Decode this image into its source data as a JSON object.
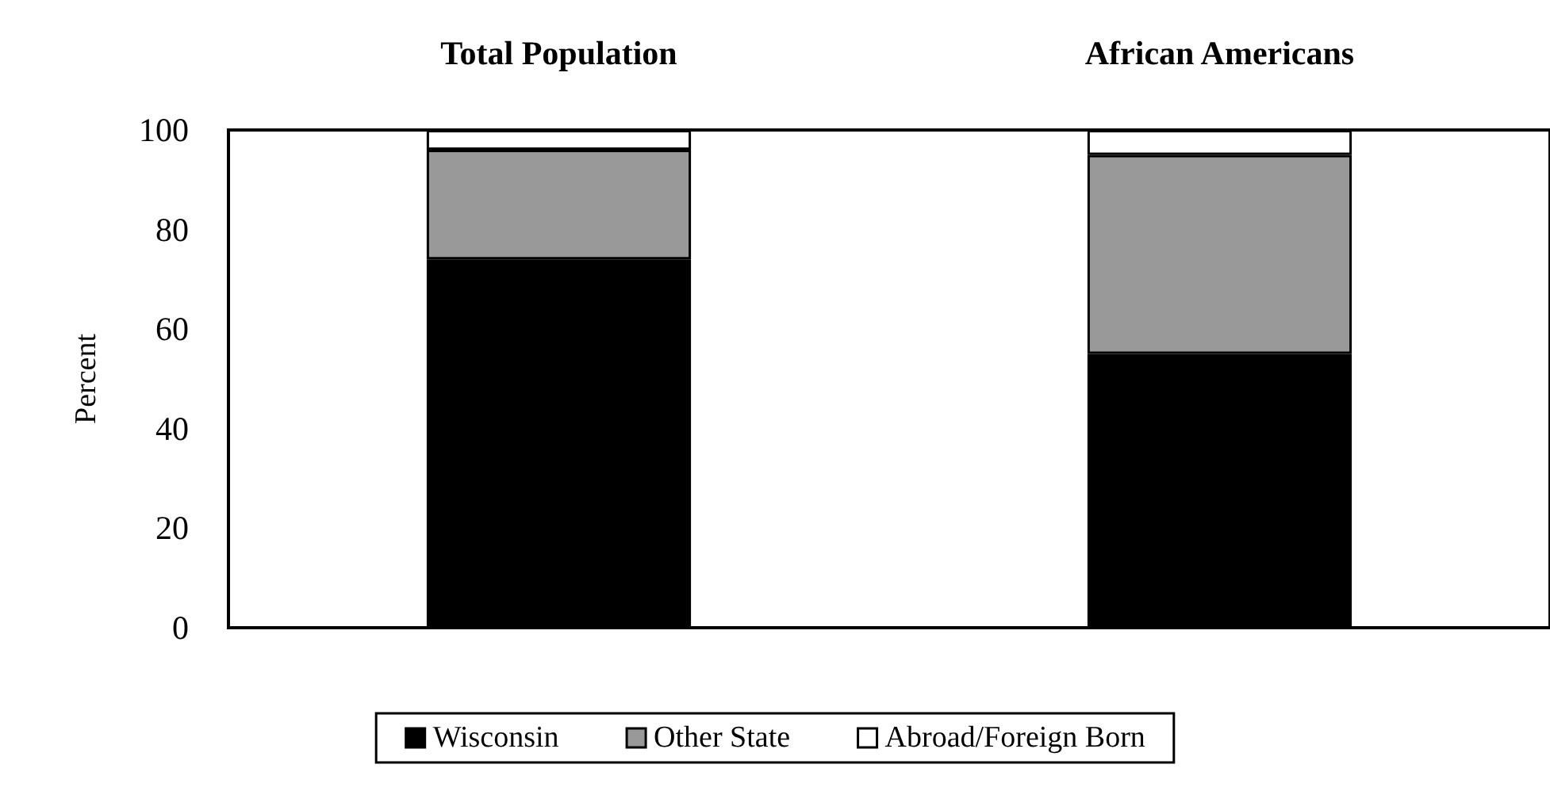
{
  "chart_data": {
    "type": "bar",
    "stacked": true,
    "ylabel": "Percent",
    "categories": [
      "Total Population",
      "African Americans"
    ],
    "series": [
      {
        "name": "Wisconsin",
        "color": "#000000",
        "values": [
          74,
          55
        ]
      },
      {
        "name": "Other State",
        "color": "#999999",
        "values": [
          22,
          40
        ]
      },
      {
        "name": "Abroad/Foreign Born",
        "color": "#ffffff",
        "values": [
          4,
          5
        ]
      }
    ],
    "ylim": [
      0,
      100
    ],
    "yticks": [
      0,
      20,
      40,
      60,
      80,
      100
    ],
    "grid": false,
    "legend": "bottom"
  }
}
